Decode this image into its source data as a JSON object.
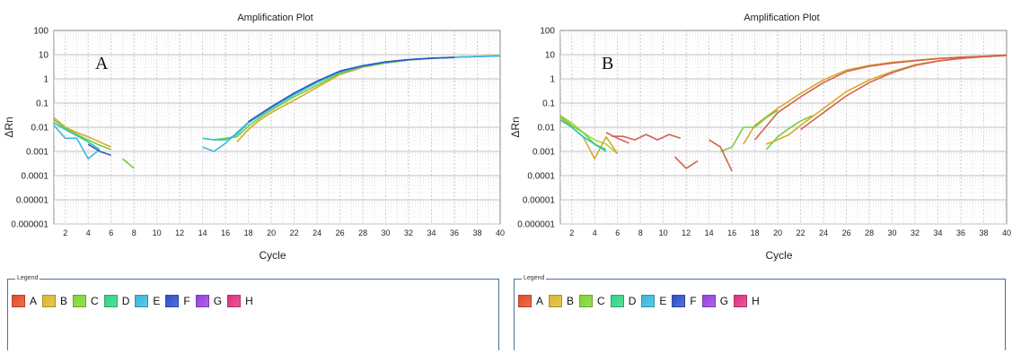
{
  "chart_data": [
    {
      "type": "line",
      "panel_label": "A",
      "title": "Amplification Plot",
      "xlabel": "Cycle",
      "ylabel": "ΔRn",
      "y_scale": "log",
      "xlim": [
        1,
        40
      ],
      "ylim": [
        1e-06,
        100
      ],
      "x_ticks": [
        2,
        4,
        6,
        8,
        10,
        12,
        14,
        16,
        18,
        20,
        22,
        24,
        26,
        28,
        30,
        32,
        34,
        36,
        38,
        40
      ],
      "y_ticks": [
        "100",
        "10",
        "1",
        "0.1",
        "0.01",
        "0.001",
        "0.0001",
        "0.00001",
        "0.000001"
      ],
      "grid": true,
      "series": [
        {
          "color": "#d8a828",
          "segments": [
            [
              [
                1,
                0.025
              ],
              [
                2,
                0.01
              ],
              [
                3,
                0.006
              ],
              [
                4,
                0.004
              ],
              [
                5,
                0.0025
              ],
              [
                6,
                0.0015
              ]
            ],
            [
              [
                17,
                0.0025
              ],
              [
                18,
                0.008
              ],
              [
                19,
                0.02
              ],
              [
                20,
                0.04
              ],
              [
                22,
                0.13
              ],
              [
                24,
                0.45
              ],
              [
                26,
                1.5
              ],
              [
                28,
                3
              ],
              [
                30,
                4.5
              ],
              [
                32,
                6
              ],
              [
                34,
                7
              ],
              [
                36,
                7.8
              ],
              [
                38,
                8.5
              ],
              [
                40,
                9
              ]
            ]
          ]
        },
        {
          "color": "#74cf3c",
          "segments": [
            [
              [
                1,
                0.02
              ],
              [
                2,
                0.009
              ],
              [
                3,
                0.005
              ],
              [
                4,
                0.003
              ],
              [
                5,
                0.0018
              ],
              [
                6,
                0.0012
              ]
            ],
            [
              [
                7,
                0.0005
              ],
              [
                8,
                0.0002
              ]
            ],
            [
              [
                15,
                0.003
              ],
              [
                16,
                0.0035
              ],
              [
                17,
                0.004
              ],
              [
                18,
                0.011
              ],
              [
                19,
                0.025
              ],
              [
                20,
                0.05
              ],
              [
                22,
                0.18
              ],
              [
                24,
                0.55
              ],
              [
                26,
                1.7
              ],
              [
                28,
                3.2
              ],
              [
                30,
                4.6
              ],
              [
                32,
                6
              ],
              [
                34,
                7
              ],
              [
                36,
                7.8
              ],
              [
                38,
                8.5
              ],
              [
                40,
                9
              ]
            ]
          ]
        },
        {
          "color": "#2bc7b4",
          "segments": [
            [
              [
                1,
                0.015
              ],
              [
                2,
                0.008
              ],
              [
                3,
                0.0045
              ],
              [
                4,
                0.0025
              ],
              [
                5,
                0.0012
              ]
            ],
            [
              [
                14,
                0.0035
              ],
              [
                15,
                0.003
              ],
              [
                16,
                0.003
              ],
              [
                17,
                0.005
              ],
              [
                18,
                0.015
              ],
              [
                19,
                0.03
              ],
              [
                20,
                0.06
              ],
              [
                22,
                0.22
              ],
              [
                24,
                0.7
              ],
              [
                26,
                1.9
              ],
              [
                28,
                3.3
              ],
              [
                30,
                4.8
              ],
              [
                32,
                6.1
              ],
              [
                34,
                7.1
              ],
              [
                36,
                7.8
              ],
              [
                38,
                8.4
              ],
              [
                40,
                8.8
              ]
            ]
          ]
        },
        {
          "color": "#3fb7e2",
          "segments": [
            [
              [
                1,
                0.012
              ],
              [
                2,
                0.0035
              ],
              [
                3,
                0.0035
              ],
              [
                4,
                0.0005
              ],
              [
                5,
                0.0012
              ]
            ],
            [
              [
                14,
                0.0015
              ],
              [
                15,
                0.001
              ],
              [
                16,
                0.0022
              ],
              [
                17,
                0.006
              ],
              [
                18,
                0.016
              ],
              [
                19,
                0.032
              ],
              [
                20,
                0.065
              ],
              [
                22,
                0.24
              ],
              [
                24,
                0.75
              ],
              [
                26,
                2
              ],
              [
                28,
                3.4
              ],
              [
                30,
                4.9
              ],
              [
                32,
                6.2
              ],
              [
                34,
                7.2
              ],
              [
                36,
                7.8
              ],
              [
                38,
                8.3
              ],
              [
                40,
                8.8
              ]
            ]
          ]
        },
        {
          "color": "#2f55c8",
          "segments": [
            [
              [
                4,
                0.002
              ],
              [
                5,
                0.001
              ],
              [
                6,
                0.0007
              ]
            ],
            [
              [
                18,
                0.017
              ],
              [
                20,
                0.07
              ],
              [
                22,
                0.26
              ],
              [
                24,
                0.8
              ],
              [
                26,
                2.1
              ],
              [
                28,
                3.5
              ],
              [
                30,
                5
              ],
              [
                32,
                6.2
              ],
              [
                34,
                7.2
              ],
              [
                36,
                7.6
              ]
            ]
          ]
        }
      ]
    },
    {
      "type": "line",
      "panel_label": "B",
      "title": "Amplification Plot",
      "xlabel": "Cycle",
      "ylabel": "ΔRn",
      "y_scale": "log",
      "xlim": [
        1,
        40
      ],
      "ylim": [
        1e-06,
        100
      ],
      "x_ticks": [
        2,
        4,
        6,
        8,
        10,
        12,
        14,
        16,
        18,
        20,
        22,
        24,
        26,
        28,
        30,
        32,
        34,
        36,
        38,
        40
      ],
      "y_ticks": [
        "100",
        "10",
        "1",
        "0.1",
        "0.01",
        "0.001",
        "0.0001",
        "0.00001",
        "0.000001"
      ],
      "grid": true,
      "series": [
        {
          "color": "#a8d838",
          "segments": [
            [
              [
                1,
                0.03
              ],
              [
                2,
                0.015
              ],
              [
                3,
                0.006
              ],
              [
                4,
                0.003
              ],
              [
                5,
                0.002
              ],
              [
                6,
                0.0008
              ]
            ]
          ]
        },
        {
          "color": "#d8a828",
          "segments": [
            [
              [
                1,
                0.025
              ],
              [
                2,
                0.01
              ],
              [
                3,
                0.004
              ],
              [
                4,
                0.0005
              ],
              [
                5,
                0.004
              ],
              [
                6,
                0.0008
              ]
            ],
            [
              [
                17,
                0.002
              ],
              [
                18,
                0.012
              ],
              [
                20,
                0.06
              ],
              [
                22,
                0.25
              ],
              [
                24,
                0.9
              ],
              [
                26,
                2.3
              ],
              [
                28,
                3.6
              ],
              [
                30,
                4.8
              ],
              [
                32,
                5.8
              ],
              [
                34,
                7
              ],
              [
                36,
                7.8
              ],
              [
                38,
                8.5
              ],
              [
                40,
                9.2
              ]
            ],
            [
              [
                19,
                0.002
              ],
              [
                20,
                0.003
              ],
              [
                21,
                0.005
              ],
              [
                22,
                0.012
              ],
              [
                24,
                0.06
              ],
              [
                26,
                0.3
              ],
              [
                28,
                0.9
              ],
              [
                30,
                2
              ],
              [
                32,
                3.8
              ],
              [
                34,
                5.5
              ],
              [
                36,
                7
              ],
              [
                38,
                8.2
              ],
              [
                40,
                9
              ]
            ]
          ]
        },
        {
          "color": "#74cf3c",
          "segments": [
            [
              [
                1,
                0.03
              ],
              [
                2,
                0.012
              ],
              [
                3,
                0.006
              ],
              [
                4,
                0.002
              ],
              [
                5,
                0.0012
              ]
            ],
            [
              [
                15,
                0.001
              ],
              [
                16,
                0.0015
              ],
              [
                17,
                0.01
              ],
              [
                18,
                0.01
              ],
              [
                19,
                0.025
              ],
              [
                20,
                0.05
              ]
            ],
            [
              [
                19,
                0.0012
              ],
              [
                20,
                0.004
              ],
              [
                21,
                0.009
              ],
              [
                22,
                0.018
              ],
              [
                23,
                0.03
              ]
            ]
          ]
        },
        {
          "color": "#2bc7b4",
          "segments": [
            [
              [
                1,
                0.02
              ],
              [
                2,
                0.01
              ],
              [
                3,
                0.004
              ],
              [
                4,
                0.002
              ],
              [
                5,
                0.001
              ]
            ]
          ]
        },
        {
          "color": "#d4624f",
          "segments": [
            [
              [
                5,
                0.006
              ],
              [
                6,
                0.0035
              ],
              [
                7,
                0.0022
              ]
            ],
            [
              [
                5.5,
                0.0042
              ],
              [
                6.5,
                0.0042
              ],
              [
                7.5,
                0.003
              ],
              [
                8.5,
                0.005
              ],
              [
                9.5,
                0.003
              ],
              [
                10.5,
                0.005
              ],
              [
                11.5,
                0.0035
              ]
            ],
            [
              [
                11,
                0.0006
              ],
              [
                12,
                0.0002
              ],
              [
                13,
                0.0004
              ]
            ],
            [
              [
                14,
                0.003
              ],
              [
                15,
                0.0015
              ],
              [
                16,
                0.00015
              ]
            ],
            [
              [
                18,
                0.003
              ],
              [
                20,
                0.04
              ],
              [
                22,
                0.18
              ],
              [
                24,
                0.7
              ],
              [
                26,
                2
              ],
              [
                28,
                3.3
              ],
              [
                30,
                4.5
              ],
              [
                32,
                5.6
              ],
              [
                34,
                6.8
              ],
              [
                36,
                7.8
              ],
              [
                38,
                8.6
              ],
              [
                40,
                9.6
              ]
            ],
            [
              [
                22,
                0.008
              ],
              [
                24,
                0.04
              ],
              [
                26,
                0.2
              ],
              [
                28,
                0.7
              ],
              [
                30,
                1.8
              ],
              [
                32,
                3.6
              ],
              [
                34,
                5.4
              ],
              [
                36,
                7
              ],
              [
                38,
                8.3
              ],
              [
                40,
                9.4
              ]
            ]
          ]
        }
      ]
    }
  ],
  "legend": {
    "title": "Legend",
    "items": [
      {
        "label": "A",
        "color": "#e54a24"
      },
      {
        "label": "B",
        "color": "#dcb82a"
      },
      {
        "label": "C",
        "color": "#7ed62f"
      },
      {
        "label": "D",
        "color": "#2ed584"
      },
      {
        "label": "E",
        "color": "#37b9df"
      },
      {
        "label": "F",
        "color": "#2a4fc9"
      },
      {
        "label": "G",
        "color": "#9a3fe0"
      },
      {
        "label": "H",
        "color": "#e0307f"
      }
    ]
  }
}
